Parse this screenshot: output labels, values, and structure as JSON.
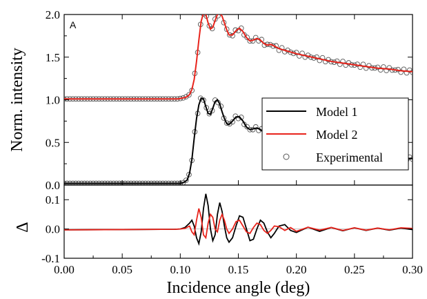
{
  "chart_data": [
    {
      "type": "line",
      "panel_label": "A",
      "xlabel": "Incidence angle (deg)",
      "ylabel": "Norm. intensity",
      "xlim": [
        0.0,
        0.3
      ],
      "ylim": [
        0.0,
        2.0
      ],
      "x_ticks": [
        "0.00",
        "0.05",
        "0.10",
        "0.15",
        "0.20",
        "0.25",
        "0.30"
      ],
      "y_ticks": [
        "0.0",
        "0.5",
        "1.0",
        "1.5",
        "2.0"
      ],
      "legend": {
        "placement": "right",
        "entries": [
          {
            "label": "Model 1",
            "color": "#000000",
            "marker": "line"
          },
          {
            "label": "Model 2",
            "color": "#e8231b",
            "marker": "line"
          },
          {
            "label": "Experimental",
            "color": "#555555",
            "marker": "open-circle"
          }
        ]
      },
      "series": [
        {
          "name": "Model 2",
          "offset": 1.0,
          "color": "#e8231b",
          "x": [
            0.0,
            0.05,
            0.098,
            0.102,
            0.105,
            0.108,
            0.11,
            0.112,
            0.114,
            0.116,
            0.118,
            0.12,
            0.122,
            0.124,
            0.126,
            0.128,
            0.13,
            0.132,
            0.134,
            0.136,
            0.138,
            0.14,
            0.142,
            0.145,
            0.148,
            0.151,
            0.154,
            0.157,
            0.16,
            0.163,
            0.166,
            0.169,
            0.172,
            0.175,
            0.178,
            0.181,
            0.185,
            0.19,
            0.195,
            0.2,
            0.21,
            0.22,
            0.23,
            0.24,
            0.25,
            0.26,
            0.27,
            0.28,
            0.29,
            0.3
          ],
          "y": [
            1.01,
            1.01,
            1.01,
            1.02,
            1.03,
            1.06,
            1.12,
            1.24,
            1.45,
            1.7,
            1.92,
            2.02,
            2.0,
            1.9,
            1.83,
            1.85,
            1.93,
            2.0,
            2.02,
            1.98,
            1.9,
            1.82,
            1.76,
            1.76,
            1.81,
            1.84,
            1.8,
            1.73,
            1.69,
            1.7,
            1.72,
            1.7,
            1.66,
            1.64,
            1.65,
            1.63,
            1.6,
            1.58,
            1.56,
            1.54,
            1.51,
            1.48,
            1.45,
            1.43,
            1.41,
            1.39,
            1.37,
            1.36,
            1.34,
            1.33
          ]
        },
        {
          "name": "Model 1",
          "offset": 0.0,
          "color": "#000000",
          "x": [
            0.0,
            0.05,
            0.1,
            0.103,
            0.106,
            0.108,
            0.11,
            0.112,
            0.114,
            0.116,
            0.118,
            0.12,
            0.122,
            0.124,
            0.126,
            0.128,
            0.13,
            0.132,
            0.134,
            0.136,
            0.138,
            0.14,
            0.142,
            0.145,
            0.148,
            0.151,
            0.154,
            0.157,
            0.16,
            0.163,
            0.166,
            0.169,
            0.172,
            0.175,
            0.178,
            0.181,
            0.185,
            0.19,
            0.195,
            0.2,
            0.21,
            0.22,
            0.23,
            0.24,
            0.25,
            0.26,
            0.27,
            0.28,
            0.29,
            0.3
          ],
          "y": [
            0.02,
            0.02,
            0.02,
            0.03,
            0.06,
            0.14,
            0.3,
            0.55,
            0.78,
            0.94,
            1.02,
            1.01,
            0.92,
            0.84,
            0.83,
            0.9,
            0.98,
            1.0,
            0.95,
            0.86,
            0.78,
            0.72,
            0.71,
            0.75,
            0.8,
            0.8,
            0.75,
            0.68,
            0.65,
            0.66,
            0.67,
            0.65,
            0.62,
            0.6,
            0.61,
            0.59,
            0.57,
            0.55,
            0.53,
            0.51,
            0.48,
            0.45,
            0.42,
            0.4,
            0.38,
            0.36,
            0.35,
            0.34,
            0.32,
            0.31
          ]
        }
      ]
    },
    {
      "type": "line",
      "xlabel": "Incidence angle (deg)",
      "ylabel": "Δ",
      "xlim": [
        0.0,
        0.3
      ],
      "ylim": [
        -0.1,
        0.15
      ],
      "x_ticks": [
        "0.00",
        "0.05",
        "0.10",
        "0.15",
        "0.20",
        "0.25",
        "0.30"
      ],
      "y_ticks": [
        "-0.1",
        "0.0",
        "0.1"
      ],
      "series": [
        {
          "name": "Model 1",
          "color": "#000000",
          "x": [
            0.0,
            0.05,
            0.095,
            0.1,
            0.104,
            0.108,
            0.11,
            0.112,
            0.114,
            0.116,
            0.118,
            0.12,
            0.122,
            0.124,
            0.126,
            0.128,
            0.13,
            0.132,
            0.134,
            0.136,
            0.138,
            0.14,
            0.142,
            0.145,
            0.148,
            0.151,
            0.154,
            0.157,
            0.16,
            0.163,
            0.166,
            0.169,
            0.172,
            0.175,
            0.178,
            0.181,
            0.185,
            0.19,
            0.195,
            0.2,
            0.21,
            0.22,
            0.23,
            0.24,
            0.25,
            0.26,
            0.27,
            0.28,
            0.29,
            0.3
          ],
          "y": [
            -0.003,
            -0.002,
            -0.001,
            0.0,
            0.005,
            0.02,
            0.03,
            0.01,
            -0.03,
            -0.05,
            -0.01,
            0.07,
            0.12,
            0.08,
            0.0,
            -0.04,
            -0.02,
            0.05,
            0.09,
            0.06,
            0.01,
            -0.03,
            -0.045,
            -0.03,
            0.01,
            0.045,
            0.04,
            0.0,
            -0.04,
            -0.035,
            0.0,
            0.03,
            0.02,
            -0.01,
            -0.03,
            -0.015,
            0.01,
            0.015,
            -0.005,
            -0.012,
            0.006,
            -0.008,
            0.005,
            -0.006,
            0.004,
            -0.005,
            0.003,
            -0.004,
            0.003,
            -0.002
          ]
        },
        {
          "name": "Model 2",
          "color": "#e8231b",
          "x": [
            0.0,
            0.05,
            0.095,
            0.1,
            0.104,
            0.108,
            0.11,
            0.112,
            0.114,
            0.116,
            0.118,
            0.12,
            0.122,
            0.124,
            0.126,
            0.128,
            0.13,
            0.132,
            0.134,
            0.136,
            0.138,
            0.14,
            0.142,
            0.145,
            0.148,
            0.151,
            0.154,
            0.157,
            0.16,
            0.163,
            0.166,
            0.169,
            0.172,
            0.175,
            0.178,
            0.181,
            0.185,
            0.19,
            0.195,
            0.2,
            0.21,
            0.22,
            0.23,
            0.24,
            0.25,
            0.26,
            0.27,
            0.28,
            0.29,
            0.3
          ],
          "y": [
            -0.003,
            -0.002,
            -0.001,
            0.0,
            0.002,
            0.01,
            -0.01,
            -0.02,
            0.03,
            0.07,
            0.04,
            -0.02,
            -0.03,
            0.02,
            0.05,
            0.04,
            0.0,
            -0.01,
            0.03,
            0.05,
            0.03,
            0.0,
            -0.015,
            0.0,
            0.025,
            0.03,
            0.01,
            -0.01,
            -0.015,
            0.005,
            0.02,
            0.015,
            -0.005,
            -0.015,
            -0.005,
            0.01,
            0.008,
            -0.005,
            0.005,
            -0.008,
            0.006,
            -0.004,
            0.005,
            -0.005,
            0.004,
            -0.004,
            0.003,
            -0.003,
            0.004,
            0.002
          ]
        }
      ],
      "experimental_scatter": {
        "name": "Experimental",
        "marker": "open-circle",
        "color": "#555555",
        "x_start": 0.0,
        "x_step": 0.0025,
        "x_end": 0.3
      }
    }
  ]
}
